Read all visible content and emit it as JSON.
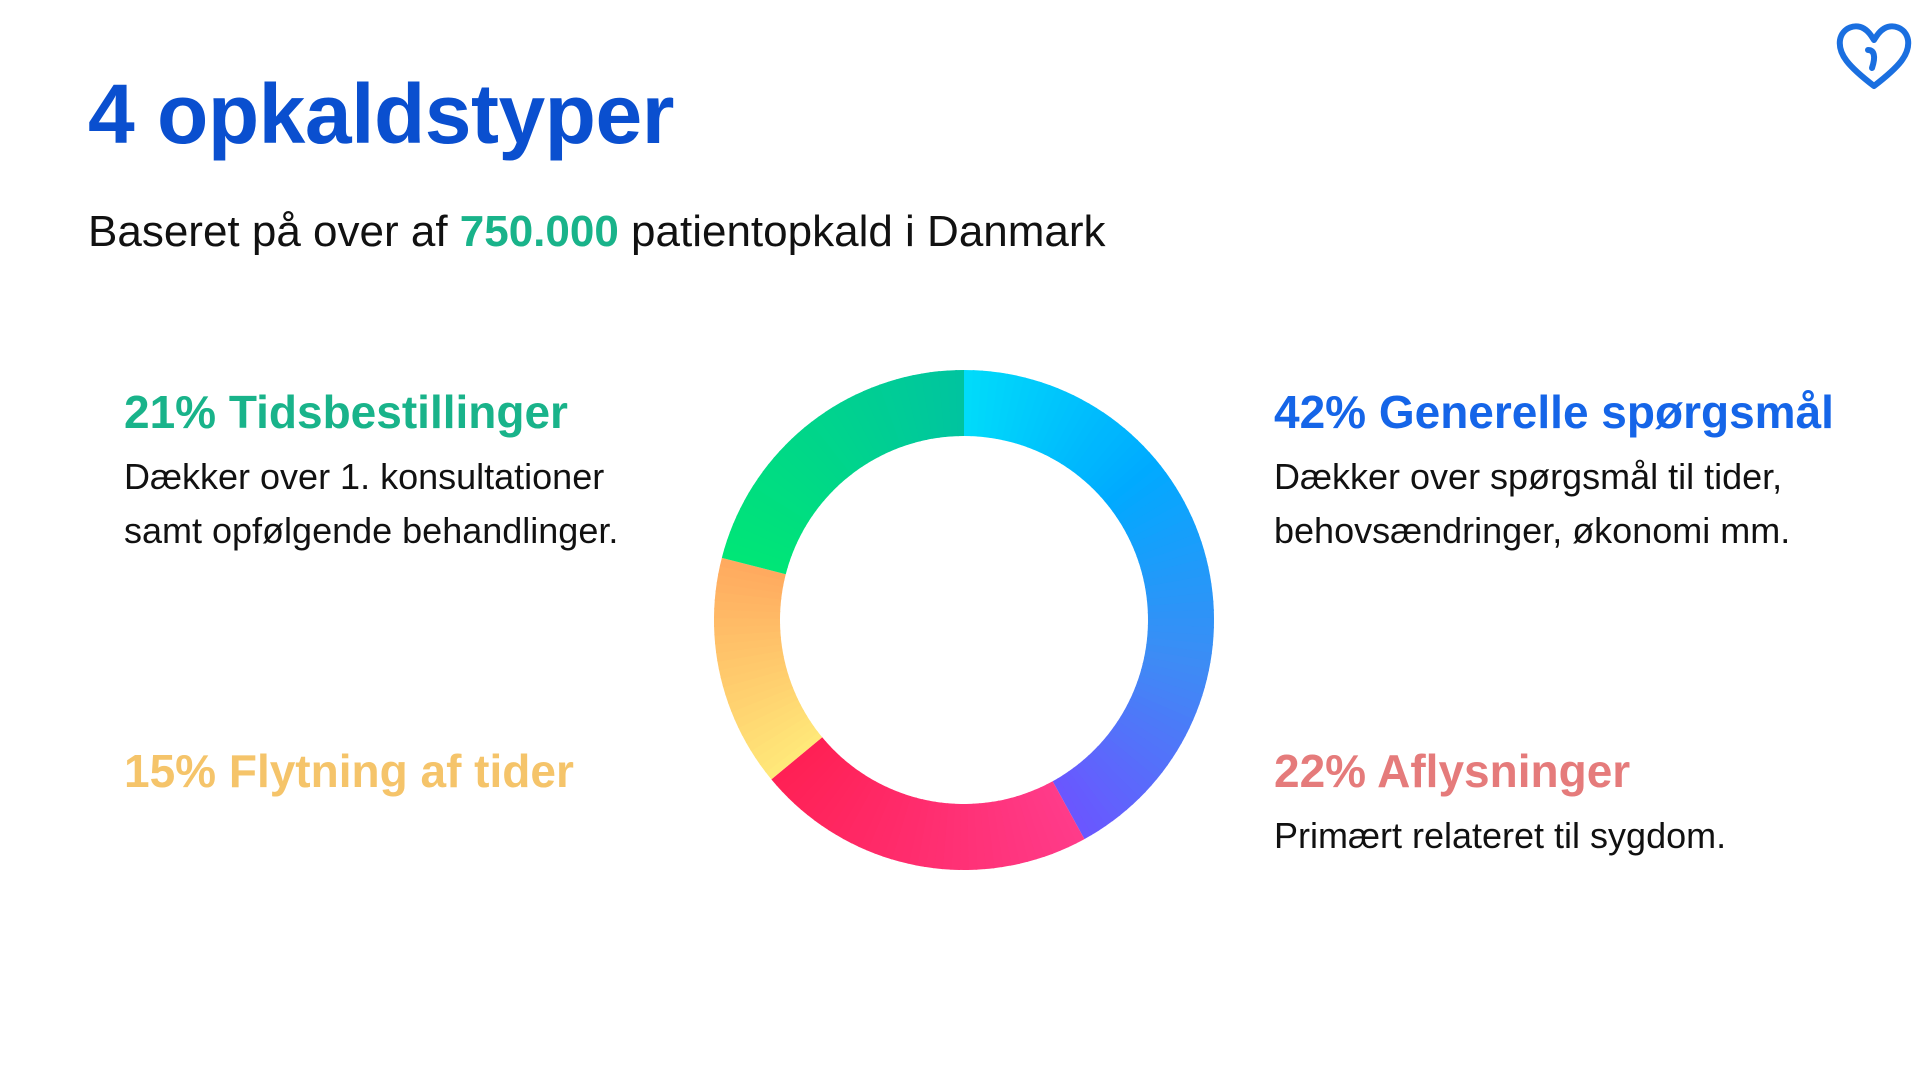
{
  "header": {
    "title": "4 opkaldstyper",
    "subtitle_before": "Baseret på over af ",
    "subtitle_highlight": "750.000",
    "subtitle_after": " patientopkald i Danmark"
  },
  "logo": {
    "icon": "heart-icon",
    "color": "#1a6fe0"
  },
  "categories": {
    "tidsbestillinger": {
      "heading": "21% Tidsbestillinger",
      "desc_line1": "Dækker over 1. konsultationer",
      "desc_line2": "samt opfølgende behandlinger.",
      "color": "#19b38a"
    },
    "generelle": {
      "heading": "42% Generelle spørgsmål",
      "desc_line1": "Dækker over spørgsmål til tider,",
      "desc_line2": "behovsændringer, økonomi mm.",
      "color": "#1565e8"
    },
    "flytning": {
      "heading": "15% Flytning af tider",
      "color": "#f5c46a"
    },
    "aflysninger": {
      "heading": "22% Aflysninger",
      "desc_line1": "Primært relateret til sygdom.",
      "color": "#e57b7b"
    }
  },
  "chart_data": {
    "type": "pie",
    "variant": "donut",
    "start_angle_deg": 0,
    "direction": "clockwise",
    "slices": [
      {
        "label": "Generelle spørgsmål",
        "value": 42,
        "colors": [
          "#00dcfa",
          "#00aaff",
          "#3d8cf5",
          "#6b56ff"
        ]
      },
      {
        "label": "Aflysninger",
        "value": 22,
        "colors": [
          "#ff3b8a",
          "#ff2054"
        ]
      },
      {
        "label": "Flytning af tider",
        "value": 15,
        "colors": [
          "#ffe97a",
          "#ffa95e"
        ]
      },
      {
        "label": "Tidsbestillinger",
        "value": 21,
        "colors": [
          "#00e676",
          "#00c4a0"
        ]
      }
    ]
  }
}
